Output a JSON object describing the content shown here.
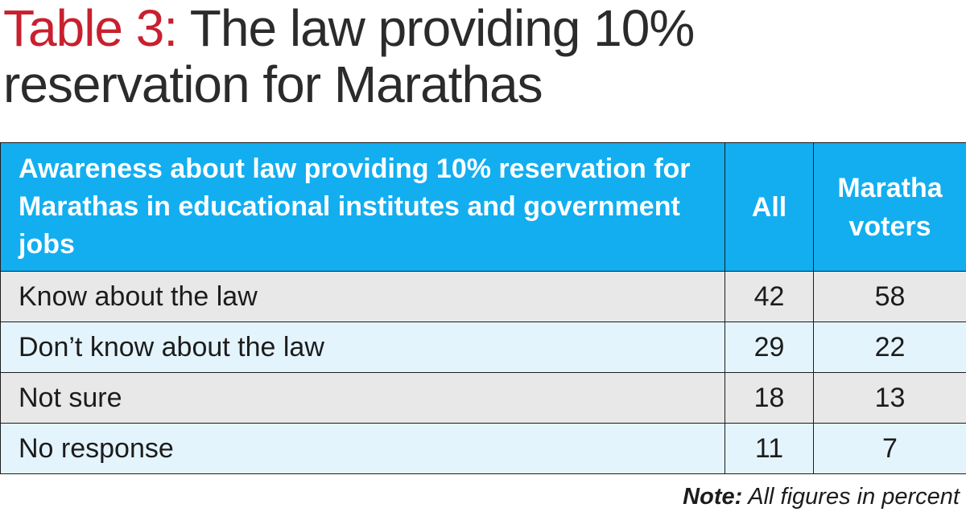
{
  "title": {
    "number": "Table 3:",
    "text_line1": " The law providing 10%",
    "text_line2": "reservation for Marathas"
  },
  "chart_data": {
    "type": "table",
    "title": "Table 3: The law providing 10% reservation for Marathas",
    "header": {
      "question": "Awareness about law providing 10% reservation for Marathas in educational institutes and government jobs",
      "columns": [
        "All",
        "Maratha voters"
      ]
    },
    "rows": [
      {
        "label": "Know about the law",
        "values": [
          "42",
          "58"
        ]
      },
      {
        "label": "Don’t know about the law",
        "values": [
          "29",
          "22"
        ]
      },
      {
        "label": "Not sure",
        "values": [
          "18",
          "13"
        ]
      },
      {
        "label": "No response",
        "values": [
          "11",
          "7"
        ]
      }
    ]
  },
  "note": {
    "label": "Note:",
    "text": " All figures in percent"
  },
  "colors": {
    "header_bg": "#12aef0",
    "title_number": "#c8202e",
    "row_even": "#e8e8e9",
    "row_odd": "#e4f4fd"
  }
}
